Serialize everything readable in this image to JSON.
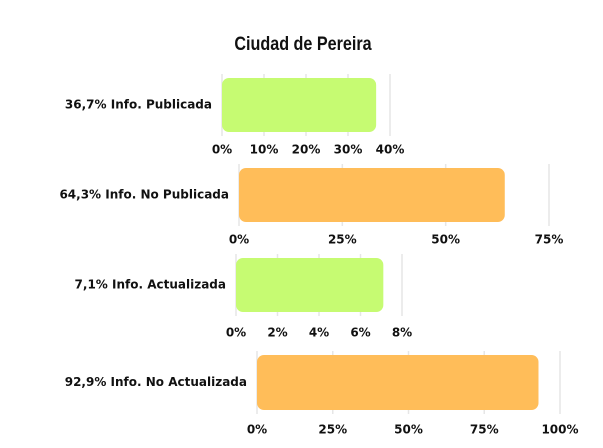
{
  "title": "Ciudad de Pereira",
  "chart_data": [
    {
      "type": "bar",
      "orientation": "horizontal",
      "categories": [
        "36,7% Info. Publicada"
      ],
      "values": [
        36.7
      ],
      "color": "#c6fb72",
      "xlim": [
        0,
        40
      ],
      "xticks": [
        {
          "value": 0,
          "label": "0%"
        },
        {
          "value": 10,
          "label": "10%"
        },
        {
          "value": 20,
          "label": "20%"
        },
        {
          "value": 30,
          "label": "30%"
        },
        {
          "value": 40,
          "label": "40%"
        }
      ],
      "grid": true
    },
    {
      "type": "bar",
      "orientation": "horizontal",
      "categories": [
        "64,3% Info. No Publicada"
      ],
      "values": [
        64.3
      ],
      "color": "#ffbd59",
      "xlim": [
        0,
        75
      ],
      "xticks": [
        {
          "value": 0,
          "label": "0%"
        },
        {
          "value": 25,
          "label": "25%"
        },
        {
          "value": 50,
          "label": "50%"
        },
        {
          "value": 75,
          "label": "75%"
        }
      ],
      "grid": true
    },
    {
      "type": "bar",
      "orientation": "horizontal",
      "categories": [
        "7,1% Info. Actualizada"
      ],
      "values": [
        7.1
      ],
      "color": "#c6fb72",
      "xlim": [
        0,
        8
      ],
      "xticks": [
        {
          "value": 0,
          "label": "0%"
        },
        {
          "value": 2,
          "label": "2%"
        },
        {
          "value": 4,
          "label": "4%"
        },
        {
          "value": 6,
          "label": "6%"
        },
        {
          "value": 8,
          "label": "8%"
        }
      ],
      "grid": true
    },
    {
      "type": "bar",
      "orientation": "horizontal",
      "categories": [
        "92,9% Info. No Actualizada"
      ],
      "values": [
        92.9
      ],
      "color": "#ffbd59",
      "xlim": [
        0,
        100
      ],
      "xticks": [
        {
          "value": 0,
          "label": "0%"
        },
        {
          "value": 25,
          "label": "25%"
        },
        {
          "value": 50,
          "label": "50%"
        },
        {
          "value": 75,
          "label": "75%"
        },
        {
          "value": 100,
          "label": "100%"
        }
      ],
      "grid": true
    }
  ]
}
